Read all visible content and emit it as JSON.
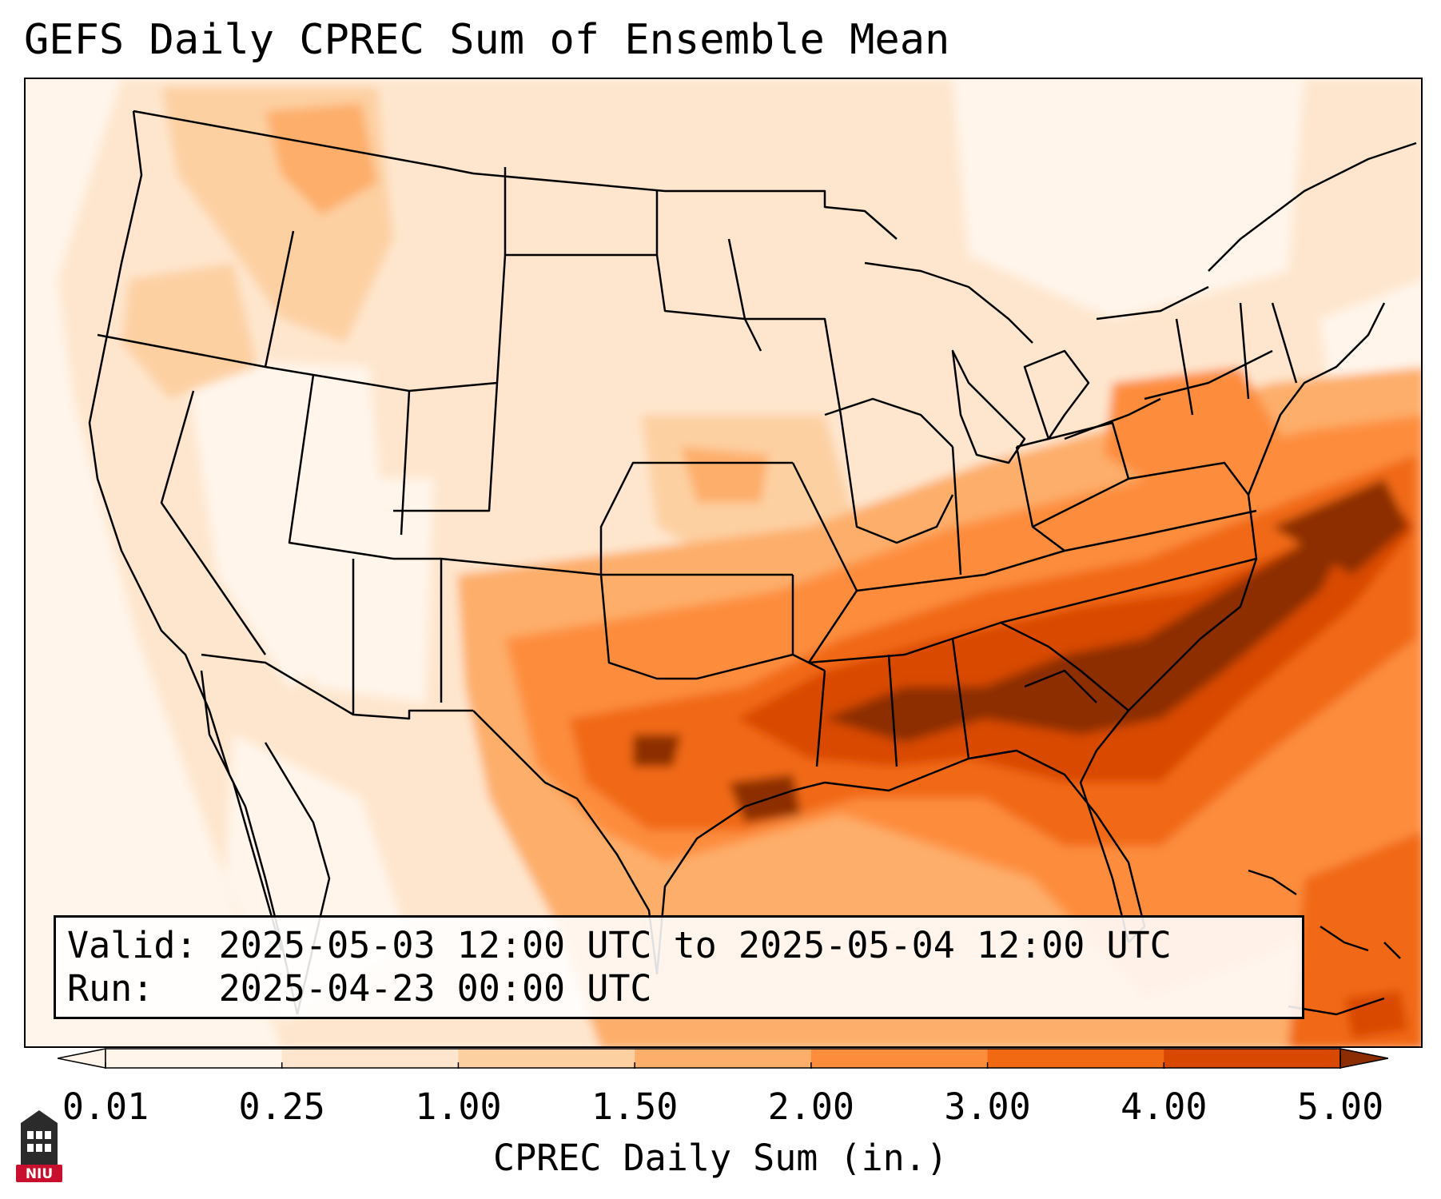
{
  "title": "GEFS Daily CPREC Sum of Ensemble Mean",
  "info": {
    "valid_label": "Valid:",
    "valid_value": "2025-05-03 12:00 UTC to 2025-05-04 12:00 UTC",
    "run_label": "Run:",
    "run_value": "2025-04-23 00:00 UTC"
  },
  "colorbar": {
    "label": "CPREC Daily Sum (in.)",
    "ticks": [
      "0.01",
      "0.25",
      "1.00",
      "1.50",
      "2.00",
      "3.00",
      "4.00",
      "5.00"
    ],
    "colors": [
      "#fff5eb",
      "#fee6ce",
      "#fdd0a2",
      "#fdae6b",
      "#fd8d3c",
      "#f16913",
      "#d94801",
      "#8c2d04"
    ],
    "extend": "both"
  },
  "logo": {
    "text": "NIU",
    "color": "#c8102e"
  },
  "map": {
    "region": "Continental United States",
    "precip_max_areas": [
      "Mississippi",
      "Alabama",
      "Georgia",
      "South Carolina",
      "Atlantic offshore",
      "East Texas"
    ]
  }
}
